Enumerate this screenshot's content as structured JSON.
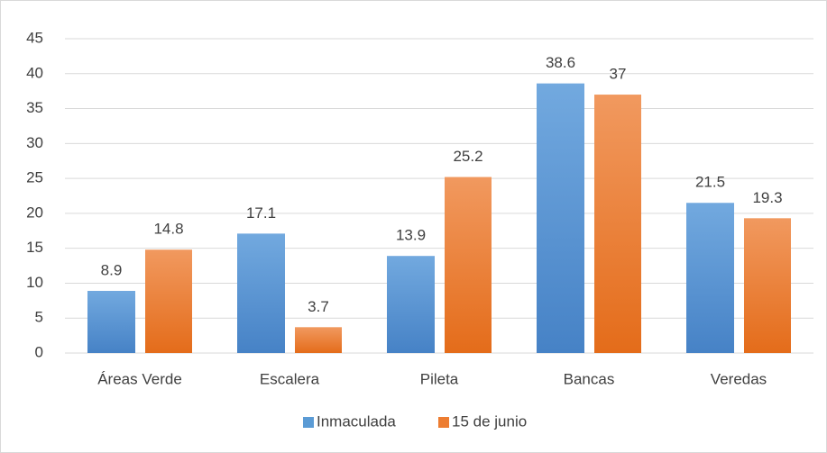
{
  "chart_data": {
    "type": "bar",
    "categories": [
      "Áreas Verde",
      "Escalera",
      "Pileta",
      "Bancas",
      "Veredas"
    ],
    "series": [
      {
        "name": "Inmaculada",
        "color": "#5b9bd5",
        "values": [
          8.9,
          17.1,
          13.9,
          38.6,
          21.5
        ]
      },
      {
        "name": "15 de junio",
        "color": "#ed7d31",
        "values": [
          14.8,
          3.7,
          25.2,
          37,
          19.3
        ]
      }
    ],
    "ylim": [
      0,
      45
    ],
    "yticks": [
      0,
      5,
      10,
      15,
      20,
      25,
      30,
      35,
      40,
      45
    ],
    "grid": true,
    "legend": "bottom"
  }
}
